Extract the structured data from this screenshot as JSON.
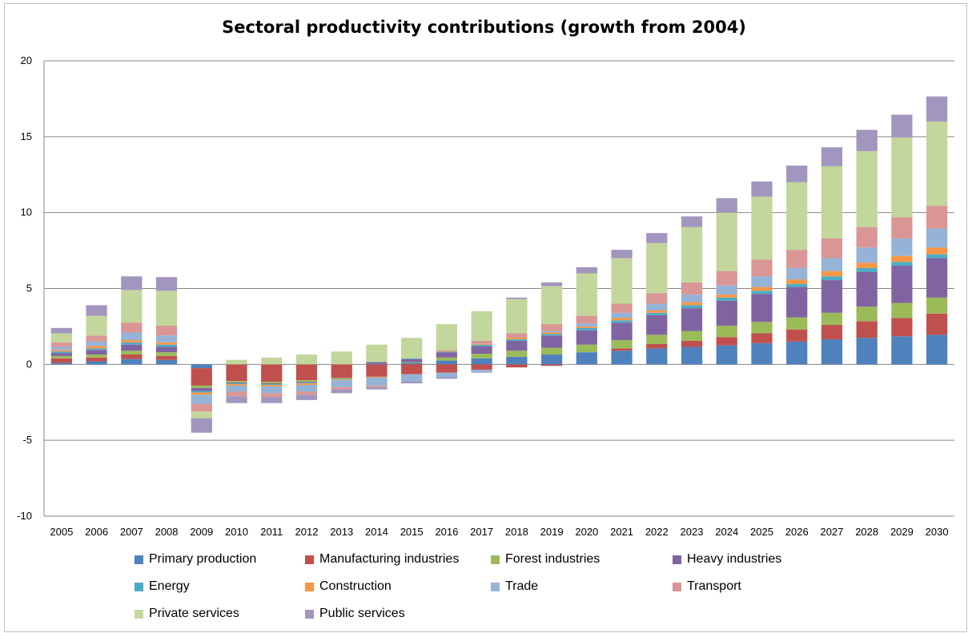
{
  "chart_data": {
    "type": "bar",
    "stacked": true,
    "title": "Sectoral productivity contributions (growth from 2004)",
    "xlabel": "",
    "ylabel": "",
    "ylim": [
      -10,
      20
    ],
    "yticks": [
      "-10",
      "-5",
      "0",
      "5",
      "10",
      "15",
      "20"
    ],
    "grid": true,
    "legend_position": "bottom",
    "categories": [
      "2005",
      "2006",
      "2007",
      "2008",
      "2009",
      "2010",
      "2011",
      "2012",
      "2013",
      "2014",
      "2015",
      "2016",
      "2017",
      "2018",
      "2019",
      "2020",
      "2021",
      "2022",
      "2023",
      "2024",
      "2025",
      "2026",
      "2027",
      "2028",
      "2029",
      "2030"
    ],
    "series": [
      {
        "name": "Primary production",
        "color": "#4F81BD",
        "values": [
          0.1,
          0.2,
          0.35,
          0.3,
          -0.25,
          0,
          0,
          0,
          0,
          0.05,
          0.1,
          0.25,
          0.4,
          0.5,
          0.65,
          0.8,
          0.9,
          1.05,
          1.15,
          1.25,
          1.4,
          1.5,
          1.65,
          1.75,
          1.85,
          1.95
        ]
      },
      {
        "name": "Manufacturing industries",
        "color": "#C0504D",
        "values": [
          0.3,
          0.25,
          0.3,
          0.25,
          -1.15,
          -1.1,
          -1.15,
          -1.05,
          -0.9,
          -0.8,
          -0.65,
          -0.55,
          -0.35,
          -0.2,
          -0.1,
          0,
          0.15,
          0.3,
          0.4,
          0.55,
          0.65,
          0.8,
          0.95,
          1.1,
          1.2,
          1.4
        ]
      },
      {
        "name": "Forest industries",
        "color": "#9BBB59",
        "values": [
          0.15,
          0.2,
          0.25,
          0.25,
          -0.15,
          -0.1,
          -0.1,
          -0.1,
          -0.05,
          0,
          0.05,
          0.2,
          0.3,
          0.4,
          0.45,
          0.5,
          0.55,
          0.6,
          0.65,
          0.75,
          0.75,
          0.8,
          0.8,
          0.95,
          1.0,
          1.05
        ]
      },
      {
        "name": "Heavy industries",
        "color": "#8064A2",
        "values": [
          0.2,
          0.3,
          0.4,
          0.35,
          -0.2,
          -0.05,
          -0.05,
          -0.05,
          0,
          0.1,
          0.2,
          0.35,
          0.5,
          0.65,
          0.8,
          0.95,
          1.15,
          1.3,
          1.5,
          1.65,
          1.85,
          2.0,
          2.15,
          2.3,
          2.45,
          2.6
        ]
      },
      {
        "name": "Energy",
        "color": "#4BACC6",
        "values": [
          0.1,
          0.1,
          0.15,
          0.15,
          -0.1,
          -0.05,
          -0.05,
          -0.05,
          -0.05,
          0,
          0.05,
          0.05,
          0.1,
          0.1,
          0.1,
          0.15,
          0.15,
          0.15,
          0.2,
          0.2,
          0.2,
          0.2,
          0.25,
          0.25,
          0.25,
          0.25
        ]
      },
      {
        "name": "Construction",
        "color": "#F79646",
        "values": [
          0.1,
          0.15,
          0.15,
          0.15,
          -0.15,
          -0.1,
          -0.1,
          -0.1,
          -0.05,
          -0.05,
          0,
          0.05,
          0.05,
          0.1,
          0.1,
          0.1,
          0.15,
          0.15,
          0.2,
          0.2,
          0.25,
          0.3,
          0.35,
          0.35,
          0.4,
          0.45
        ]
      },
      {
        "name": "Trade",
        "color": "#95B3D7",
        "values": [
          0.2,
          0.3,
          0.5,
          0.45,
          -0.6,
          -0.4,
          -0.45,
          -0.45,
          -0.45,
          -0.55,
          -0.45,
          -0.3,
          -0.15,
          0,
          0.1,
          0.2,
          0.35,
          0.45,
          0.5,
          0.6,
          0.7,
          0.75,
          0.85,
          1.0,
          1.15,
          1.25
        ]
      },
      {
        "name": "Transport",
        "color": "#D99694",
        "values": [
          0.3,
          0.4,
          0.65,
          0.65,
          -0.5,
          -0.3,
          -0.25,
          -0.2,
          -0.15,
          -0.1,
          0,
          0.05,
          0.2,
          0.3,
          0.45,
          0.5,
          0.6,
          0.7,
          0.8,
          0.95,
          1.1,
          1.2,
          1.3,
          1.35,
          1.4,
          1.5
        ]
      },
      {
        "name": "Private services",
        "color": "#C3D69B",
        "values": [
          0.6,
          1.3,
          2.15,
          2.3,
          -0.45,
          0.3,
          0.45,
          0.65,
          0.85,
          1.15,
          1.35,
          1.7,
          1.95,
          2.25,
          2.5,
          2.8,
          3.0,
          3.3,
          3.65,
          3.85,
          4.15,
          4.45,
          4.75,
          5.0,
          5.25,
          5.55
        ]
      },
      {
        "name": "Public services",
        "color": "#A295BE",
        "values": [
          0.35,
          0.7,
          0.9,
          0.9,
          -0.95,
          -0.45,
          -0.4,
          -0.35,
          -0.25,
          -0.15,
          -0.15,
          -0.1,
          -0.05,
          0.1,
          0.25,
          0.4,
          0.55,
          0.65,
          0.7,
          0.95,
          1.0,
          1.1,
          1.25,
          1.4,
          1.5,
          1.65
        ]
      }
    ]
  }
}
